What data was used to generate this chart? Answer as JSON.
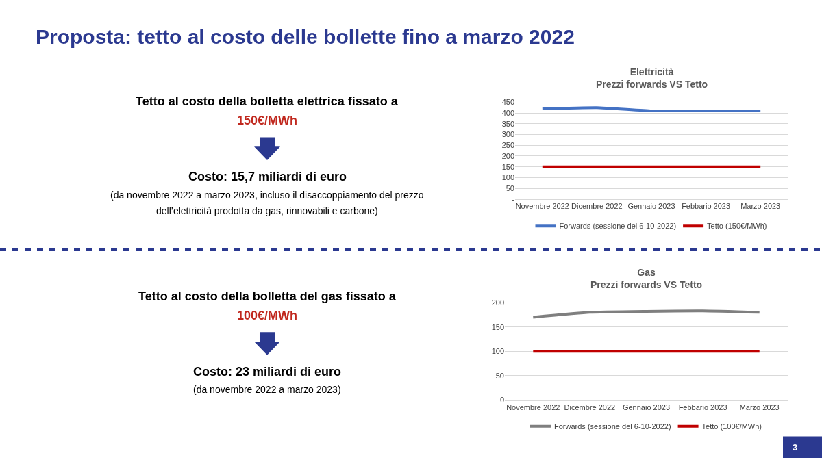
{
  "chart_data": [
    {
      "type": "other",
      "title": "Proposta: tetto al costo delle bollette fino a marzo 2022",
      "annotations": [
        "Tetto al costo della bolletta elettrica fissato a",
        "150€/MWh",
        "Costo: 15,7 miliardi di euro",
        "(da novembre 2022 a marzo 2023, incluso il disaccoppiamento del prezzo",
        "dell’elettricità prodotta da gas, rinnovabili e carbone)",
        "Tetto al costo della bolletta del gas fissato a",
        "100€/MWh",
        "Costo: 23 miliardi di euro",
        "(da novembre 2022 a marzo 2023)",
        "3"
      ]
    },
    {
      "type": "line",
      "title": "Elettricità\nPrezzi forwards VS Tetto",
      "categories": [
        "Novembre 2022",
        "Dicembre 2022",
        "Gennaio 2023",
        "Febbario 2023",
        "Marzo 2023"
      ],
      "series": [
        {
          "name": "Forwards (sessione del 6-10-2022)",
          "color": "#4472c4",
          "values": [
            420,
            425,
            410,
            410,
            410
          ]
        },
        {
          "name": "Tetto (150€/MWh)",
          "color": "#c00000",
          "values": [
            150,
            150,
            150,
            150,
            150
          ]
        }
      ],
      "ylim": [
        0,
        450
      ],
      "yticks": [
        {
          "value": 0,
          "label": "-"
        },
        50,
        100,
        150,
        200,
        250,
        300,
        350,
        400,
        450
      ],
      "grid": "y",
      "legend": "bottom",
      "marker": "none",
      "line_style": "solid"
    },
    {
      "type": "line",
      "title": "Gas\nPrezzi forwards VS Tetto",
      "categories": [
        "Novembre 2022",
        "Dicembre 2022",
        "Gennaio 2023",
        "Febbario 2023",
        "Marzo 2023"
      ],
      "series": [
        {
          "name": "Forwards (sessione del 6-10-2022)",
          "color": "#7f7f7f",
          "values": [
            170,
            180,
            182,
            183,
            180
          ]
        },
        {
          "name": "Tetto (100€/MWh)",
          "color": "#c00000",
          "values": [
            100,
            100,
            100,
            100,
            100
          ]
        }
      ],
      "ylim": [
        0,
        200
      ],
      "yticks": [
        0,
        50,
        100,
        150,
        200
      ],
      "grid": "y",
      "legend": "bottom",
      "marker": "none",
      "line_style": "solid"
    }
  ]
}
